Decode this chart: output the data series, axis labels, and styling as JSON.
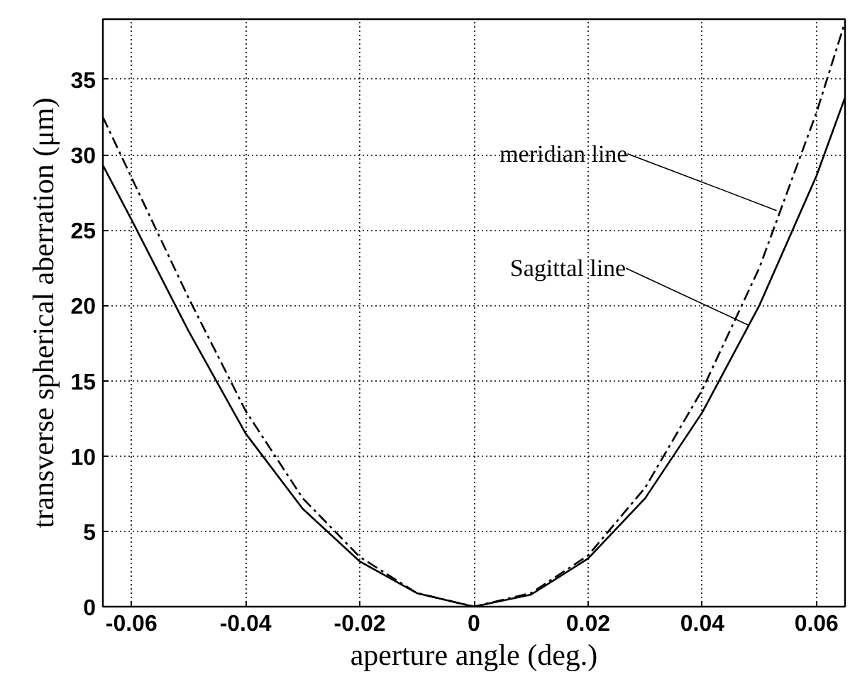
{
  "chart_data": {
    "type": "line",
    "xlabel": "aperture angle (deg.)",
    "ylabel": "transverse spherical aberration (μm)",
    "series": [
      {
        "color": "#000000",
        "line_style": "solid",
        "x": [
          -0.065,
          -0.06,
          -0.05,
          -0.04,
          -0.03,
          -0.02,
          -0.01,
          0,
          0.01,
          0.02,
          0.03,
          0.04,
          0.05,
          0.06,
          0.065
        ],
        "values": [
          29.3,
          25.7,
          18.3,
          11.5,
          6.5,
          3.0,
          0.9,
          0,
          0.8,
          3.2,
          7.2,
          12.9,
          20.0,
          28.6,
          33.8
        ]
      },
      {
        "color": "#000000",
        "line_style": "dashed",
        "x": [
          -0.065,
          -0.06,
          -0.05,
          -0.04,
          -0.03,
          -0.02,
          -0.01,
          0,
          0.01,
          0.02,
          0.03,
          0.04,
          0.05,
          0.06,
          0.065
        ],
        "values": [
          32.5,
          28.5,
          20.5,
          13.0,
          7.2,
          3.3,
          0.9,
          0,
          0.9,
          3.4,
          7.9,
          14.4,
          22.5,
          32.8,
          38.8
        ]
      }
    ],
    "annotations": [
      {
        "text": "meridian line",
        "x": 0.053,
        "y": 26.3
      },
      {
        "text": "Sagittal line",
        "x": 0.048,
        "y": 18.7
      }
    ],
    "xlim": [
      -0.065,
      0.065
    ],
    "ylim": [
      0,
      39
    ],
    "xticks": [
      {
        "value": -0.06,
        "label": "-0.06"
      },
      {
        "value": -0.04,
        "label": "-0.04"
      },
      {
        "value": -0.02,
        "label": "-0.02"
      },
      0,
      {
        "value": 0.02,
        "label": "0.02"
      },
      {
        "value": 0.04,
        "label": "0.04"
      },
      {
        "value": 0.06,
        "label": "0.06"
      }
    ],
    "yticks": [
      0,
      5,
      10,
      15,
      20,
      25,
      30,
      35
    ],
    "grid": true
  }
}
